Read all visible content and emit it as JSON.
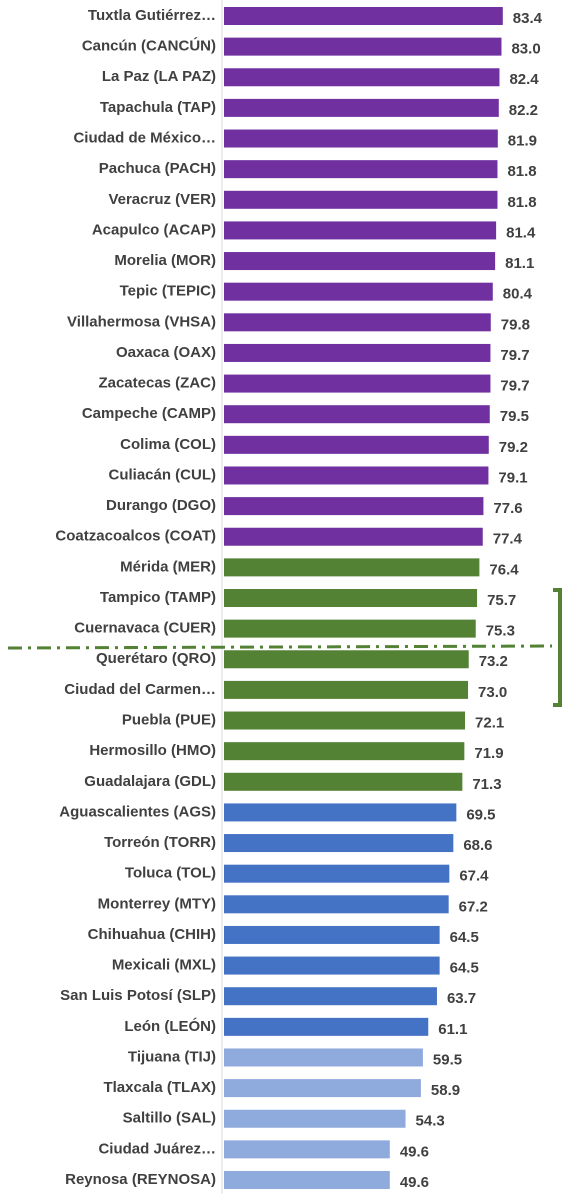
{
  "chart_data": {
    "type": "barh",
    "categories": [
      "Tuxtla Gutiérrez…",
      "Cancún (CANCÚN)",
      "La Paz (LA PAZ)",
      "Tapachula (TAP)",
      "Ciudad de México…",
      "Pachuca (PACH)",
      "Veracruz (VER)",
      "Acapulco (ACAP)",
      "Morelia (MOR)",
      "Tepic (TEPIC)",
      "Villahermosa (VHSA)",
      "Oaxaca (OAX)",
      "Zacatecas (ZAC)",
      "Campeche (CAMP)",
      "Colima (COL)",
      "Culiacán (CUL)",
      "Durango (DGO)",
      "Coatzacoalcos (COAT)",
      "Mérida (MER)",
      "Tampico (TAMP)",
      "Cuernavaca (CUER)",
      "Querétaro (QRO)",
      "Ciudad del Carmen…",
      "Puebla (PUE)",
      "Hermosillo (HMO)",
      "Guadalajara (GDL)",
      "Aguascalientes (AGS)",
      "Torreón (TORR)",
      "Toluca (TOL)",
      "Monterrey (MTY)",
      "Chihuahua (CHIH)",
      "Mexicali (MXL)",
      "San Luis Potosí (SLP)",
      "León (LEÓN)",
      "Tijuana (TIJ)",
      "Tlaxcala (TLAX)",
      "Saltillo (SAL)",
      "Ciudad Juárez…",
      "Reynosa (REYNOSA)"
    ],
    "values": [
      83.4,
      83.0,
      82.4,
      82.2,
      81.9,
      81.8,
      81.8,
      81.4,
      81.1,
      80.4,
      79.8,
      79.7,
      79.7,
      79.5,
      79.2,
      79.1,
      77.6,
      77.4,
      76.4,
      75.7,
      75.3,
      73.2,
      73.0,
      72.1,
      71.9,
      71.3,
      69.5,
      68.6,
      67.4,
      67.2,
      64.5,
      64.5,
      63.7,
      61.1,
      59.5,
      58.9,
      54.3,
      49.6,
      49.6
    ],
    "value_labels": [
      "83.4",
      "83.0",
      "82.4",
      "82.2",
      "81.9",
      "81.8",
      "81.8",
      "81.4",
      "81.1",
      "80.4",
      "79.8",
      "79.7",
      "79.7",
      "79.5",
      "79.2",
      "79.1",
      "77.6",
      "77.4",
      "76.4",
      "75.7",
      "75.3",
      "73.2",
      "73.0",
      "72.1",
      "71.9",
      "71.3",
      "69.5",
      "68.6",
      "67.4",
      "67.2",
      "64.5",
      "64.5",
      "63.7",
      "61.1",
      "59.5",
      "58.9",
      "54.3",
      "49.6",
      "49.6"
    ],
    "colors": [
      "#7030a0",
      "#7030a0",
      "#7030a0",
      "#7030a0",
      "#7030a0",
      "#7030a0",
      "#7030a0",
      "#7030a0",
      "#7030a0",
      "#7030a0",
      "#7030a0",
      "#7030a0",
      "#7030a0",
      "#7030a0",
      "#7030a0",
      "#7030a0",
      "#7030a0",
      "#7030a0",
      "#548235",
      "#548235",
      "#548235",
      "#548235",
      "#548235",
      "#548235",
      "#548235",
      "#548235",
      "#4472c4",
      "#4472c4",
      "#4472c4",
      "#4472c4",
      "#4472c4",
      "#4472c4",
      "#4472c4",
      "#4472c4",
      "#8faadc",
      "#8faadc",
      "#8faadc",
      "#8faadc",
      "#8faadc"
    ]
  }
}
